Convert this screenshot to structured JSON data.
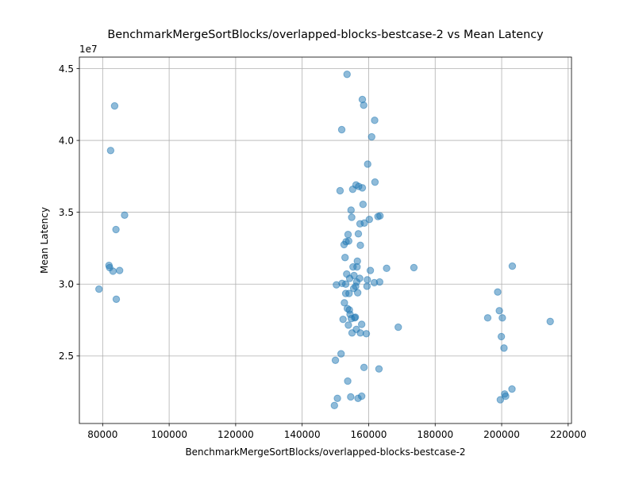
{
  "chart_data": {
    "type": "scatter",
    "title": "BenchmarkMergeSortBlocks/overlapped-blocks-bestcase-2 vs Mean Latency",
    "xlabel": "BenchmarkMergeSortBlocks/overlapped-blocks-bestcase-2",
    "ylabel": "Mean Latency",
    "y_offset_label": "1e7",
    "xlim": [
      73000,
      221000
    ],
    "ylim": [
      20300000,
      45800000
    ],
    "x_ticks": [
      80000,
      100000,
      120000,
      140000,
      160000,
      180000,
      200000,
      220000
    ],
    "x_tick_labels": [
      "80000",
      "100000",
      "120000",
      "140000",
      "160000",
      "180000",
      "200000",
      "220000"
    ],
    "y_ticks": [
      25000000,
      30000000,
      35000000,
      40000000,
      45000000
    ],
    "y_tick_labels": [
      "2.5",
      "3.0",
      "3.5",
      "4.0",
      "4.5"
    ],
    "grid": true,
    "legend": "none",
    "marker_color": "#1f77b4",
    "marker_opacity": 0.5,
    "points": [
      [
        78900,
        29650000
      ],
      [
        81900,
        31300000
      ],
      [
        82100,
        31150000
      ],
      [
        82400,
        39300000
      ],
      [
        83100,
        30900000
      ],
      [
        83600,
        42400000
      ],
      [
        84000,
        33800000
      ],
      [
        84100,
        28950000
      ],
      [
        85100,
        30950000
      ],
      [
        86600,
        34800000
      ],
      [
        149700,
        21550000
      ],
      [
        150000,
        24700000
      ],
      [
        150300,
        29950000
      ],
      [
        150600,
        22050000
      ],
      [
        151400,
        36500000
      ],
      [
        151700,
        25150000
      ],
      [
        151900,
        40750000
      ],
      [
        152000,
        30050000
      ],
      [
        152300,
        27550000
      ],
      [
        152600,
        32750000
      ],
      [
        152700,
        28700000
      ],
      [
        152900,
        31850000
      ],
      [
        153100,
        29350000
      ],
      [
        153100,
        30000000
      ],
      [
        153200,
        32950000
      ],
      [
        153400,
        30700000
      ],
      [
        153500,
        44600000
      ],
      [
        153600,
        28300000
      ],
      [
        153700,
        23250000
      ],
      [
        153800,
        33450000
      ],
      [
        153900,
        27150000
      ],
      [
        154000,
        33000000
      ],
      [
        154100,
        29350000
      ],
      [
        154200,
        28200000
      ],
      [
        154300,
        30400000
      ],
      [
        154400,
        27900000
      ],
      [
        154600,
        22150000
      ],
      [
        154700,
        35150000
      ],
      [
        154800,
        27600000
      ],
      [
        154900,
        34650000
      ],
      [
        155000,
        26600000
      ],
      [
        155200,
        36600000
      ],
      [
        155300,
        31200000
      ],
      [
        155500,
        29700000
      ],
      [
        155600,
        30600000
      ],
      [
        155800,
        27650000
      ],
      [
        156000,
        27700000
      ],
      [
        156100,
        29850000
      ],
      [
        156200,
        36900000
      ],
      [
        156300,
        26850000
      ],
      [
        156400,
        30150000
      ],
      [
        156500,
        31200000
      ],
      [
        156600,
        31600000
      ],
      [
        156700,
        29400000
      ],
      [
        156800,
        22050000
      ],
      [
        156900,
        33500000
      ],
      [
        157000,
        36800000
      ],
      [
        157300,
        30400000
      ],
      [
        157400,
        34200000
      ],
      [
        157500,
        32700000
      ],
      [
        157500,
        26600000
      ],
      [
        157900,
        22200000
      ],
      [
        157900,
        27200000
      ],
      [
        158100,
        36700000
      ],
      [
        158100,
        42850000
      ],
      [
        158300,
        35550000
      ],
      [
        158500,
        42450000
      ],
      [
        158600,
        24200000
      ],
      [
        158700,
        34250000
      ],
      [
        159300,
        26550000
      ],
      [
        159500,
        29850000
      ],
      [
        159600,
        30300000
      ],
      [
        159700,
        38350000
      ],
      [
        160200,
        34500000
      ],
      [
        160500,
        30950000
      ],
      [
        160900,
        40250000
      ],
      [
        161700,
        30100000
      ],
      [
        161800,
        41400000
      ],
      [
        161900,
        37100000
      ],
      [
        162800,
        34700000
      ],
      [
        163100,
        24100000
      ],
      [
        163300,
        30150000
      ],
      [
        163400,
        34750000
      ],
      [
        165400,
        31100000
      ],
      [
        168900,
        27000000
      ],
      [
        173600,
        31150000
      ],
      [
        195800,
        27650000
      ],
      [
        198800,
        29450000
      ],
      [
        199300,
        28150000
      ],
      [
        199600,
        21950000
      ],
      [
        199900,
        26350000
      ],
      [
        200200,
        27650000
      ],
      [
        200700,
        25550000
      ],
      [
        200900,
        22350000
      ],
      [
        201200,
        22200000
      ],
      [
        203100,
        22700000
      ],
      [
        203200,
        31250000
      ],
      [
        214600,
        27400000
      ]
    ]
  }
}
